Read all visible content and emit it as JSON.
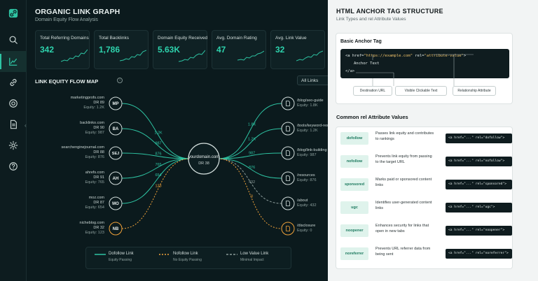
{
  "sidebar": {
    "icons": [
      "link-logo-icon",
      "search-icon",
      "chart-icon",
      "link-icon",
      "target-icon",
      "document-icon",
      "gear-icon",
      "help-icon"
    ],
    "active": "chart-icon"
  },
  "header": {
    "title": "ORGANIC LINK GRAPH",
    "subtitle": "Domain Equity Flow Analysis"
  },
  "kpis": [
    {
      "label": "Total Referring Domains",
      "value": "342"
    },
    {
      "label": "Total Backlinks",
      "value": "1,786"
    },
    {
      "label": "Domain Equity Received",
      "value": "5.63K"
    },
    {
      "label": "Avg. Domain Rating",
      "value": "47"
    },
    {
      "label": "Avg. Link Value",
      "value": "32"
    }
  ],
  "flow": {
    "title": "LINK EQUITY FLOW MAP",
    "filter": "All Links",
    "center": {
      "domain": "yourdomain.com",
      "dr": "DR 38"
    },
    "sources": [
      {
        "initials": "MP",
        "domain": "marketingprofs.com",
        "dr": "DR 89",
        "equity": "Equity: 1.2K",
        "flow": "1.2K",
        "type": "dofollow"
      },
      {
        "initials": "BA",
        "domain": "backlinko.com",
        "dr": "DR 90",
        "equity": "Equity: 987",
        "flow": "987",
        "type": "dofollow"
      },
      {
        "initials": "SEJ",
        "domain": "searchenginejournal.com",
        "dr": "DR 88",
        "equity": "Equity: 876",
        "flow": "876",
        "type": "dofollow"
      },
      {
        "initials": "AH",
        "domain": "ahrefs.com",
        "dr": "DR 91",
        "equity": "Equity: 765",
        "flow": "765",
        "type": "dofollow"
      },
      {
        "initials": "MO",
        "domain": "moz.com",
        "dr": "DR 87",
        "equity": "Equity: 654",
        "flow": "654",
        "type": "dofollow"
      },
      {
        "initials": "NB",
        "domain": "nicheblog.com",
        "dr": "DR 32",
        "equity": "Equity: 123",
        "flow": "123",
        "type": "nofollow"
      }
    ],
    "targets": [
      {
        "path": "/blog/seo-guide",
        "equity": "Equity: 1.8K",
        "flow": "1.8K",
        "type": "dofollow"
      },
      {
        "path": "/tools/keyword-research",
        "equity": "Equity: 1.2K",
        "flow": "1.2K",
        "type": "dofollow"
      },
      {
        "path": "/blog/link-building",
        "equity": "Equity: 987",
        "flow": "987",
        "type": "dofollow"
      },
      {
        "path": "/resources",
        "equity": "Equity: 876",
        "flow": "876",
        "type": "dofollow"
      },
      {
        "path": "/about",
        "equity": "Equity: 432",
        "flow": "432",
        "type": "lowvalue"
      },
      {
        "path": "/disclosure",
        "equity": "Equity: 0",
        "flow": "0",
        "type": "nofollow"
      }
    ],
    "legend": [
      {
        "label": "Dofollow Link",
        "sub": "Equity Passing"
      },
      {
        "label": "Nofollow Link",
        "sub": "No Equity Passing"
      },
      {
        "label": "Low Value Link",
        "sub": "Minimal Impact"
      }
    ],
    "colors": {
      "dofollow": "#2ec4a3",
      "nofollow": "#f0a23a",
      "lowvalue": "#8a9a98"
    }
  },
  "panel": {
    "title": "HTML ANCHOR TAG STRUCTURE",
    "subtitle": "Link Types and rel Attribute Values",
    "basic": {
      "title": "Basic Anchor Tag",
      "line1_open": "<a href=",
      "line1_href": "\"https://example.com\"",
      "line1_rel": " rel=",
      "line1_relval": "\"attribute-value\"",
      "line1_close": ">",
      "line2": "Anchor Text",
      "line3": "</a>",
      "labels": [
        "Destination URL",
        "Visible Clickable Text",
        "Relationship Attribute"
      ]
    },
    "rel_title": "Common rel Attribute Values",
    "rels": [
      {
        "name": "dofollow",
        "desc": "Passes link equity and contributes to rankings",
        "code": "<a href=\"...\" rel=\"dofollow\">"
      },
      {
        "name": "nofollow",
        "desc": "Prevents link equity from passing to the target URL",
        "code": "<a href=\"...\" rel=\"nofollow\">"
      },
      {
        "name": "sponsored",
        "desc": "Marks paid or sponsored content links",
        "code": "<a href=\"...\" rel=\"sponsored\">"
      },
      {
        "name": "ugc",
        "desc": "Identifies user-generated content links",
        "code": "<a href=\"...\" rel=\"ugc\">"
      },
      {
        "name": "noopener",
        "desc": "Enhances security for links that open in new tabs",
        "code": "<a href=\"...\" rel=\"noopener\">"
      },
      {
        "name": "noreferrer",
        "desc": "Prevents URL referrer data from being sent",
        "code": "<a href=\"...\" rel=\"noreferrer\">"
      }
    ]
  }
}
